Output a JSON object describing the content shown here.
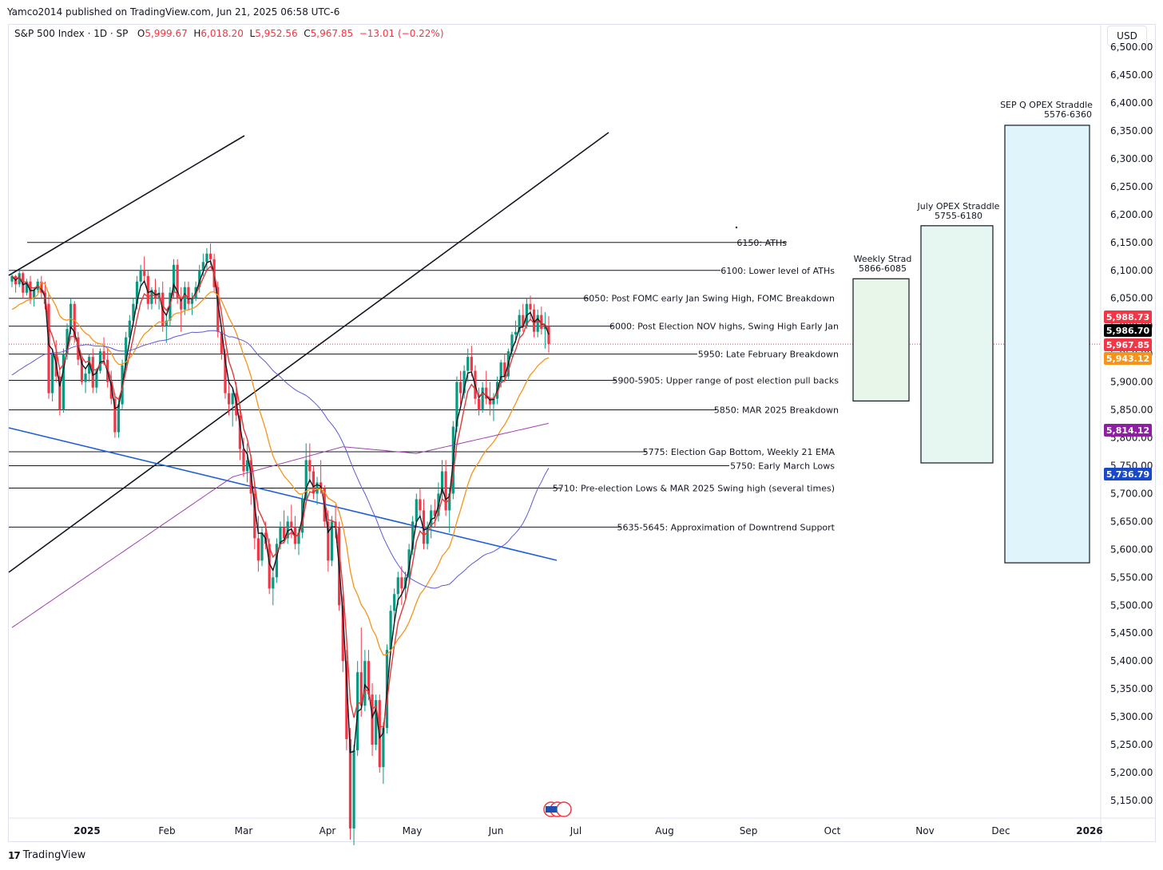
{
  "header": {
    "published": "Yamco2014 published on TradingView.com, Jun 21, 2025 06:58 UTC-6",
    "symbol": "S&P 500 Index · 1D · SP",
    "o_label": "O",
    "o_value": "5,999.67",
    "h_label": "H",
    "h_value": "6,018.20",
    "l_label": "L",
    "l_value": "5,952.56",
    "c_label": "C",
    "c_value": "5,967.85",
    "change": "−13.01 (−0.22%)"
  },
  "currency": "USD",
  "footer": {
    "brand": "TradingView",
    "logo_mark": "17"
  },
  "colors": {
    "up": "#089981",
    "down": "#f23645",
    "ema_black": "#131722",
    "ema_red": "#e03a3a",
    "ema_orange": "#f7931a",
    "ma_blue": "#5b5bd6",
    "ma_purple": "#a040b0",
    "trend_blue": "#1e5fd8",
    "weekly_box": "#e8f5e9",
    "july_box": "#e6f7f2",
    "sep_box": "#e0f5fb"
  },
  "chart_data": {
    "type": "candlestick",
    "y_axis": {
      "min": 5100,
      "max": 6500,
      "scale": "linear",
      "ticks": [
        "5,150.00",
        "5,200.00",
        "5,250.00",
        "5,300.00",
        "5,350.00",
        "5,400.00",
        "5,450.00",
        "5,500.00",
        "5,550.00",
        "5,600.00",
        "5,650.00",
        "5,700.00",
        "5,750.00",
        "5,800.00",
        "5,850.00",
        "5,900.00",
        "5,950.00",
        "6,000.00",
        "6,050.00",
        "6,100.00",
        "6,150.00",
        "6,200.00",
        "6,250.00",
        "6,300.00",
        "6,350.00",
        "6,400.00",
        "6,450.00",
        "6,500.00"
      ]
    },
    "x_axis": {
      "labels": [
        "2025",
        "Feb",
        "Mar",
        "Apr",
        "May",
        "Jun",
        "Jul",
        "Aug",
        "Sep",
        "Oct",
        "Nov",
        "Dec",
        "2026"
      ],
      "bold_labels": [
        "2025",
        "2026"
      ]
    },
    "price_badges": [
      {
        "value": "5,988.73",
        "color": "#f23645"
      },
      {
        "value": "5,986.70",
        "color": "#000000"
      },
      {
        "value": "5,967.85",
        "color": "#f23645"
      },
      {
        "value": "5,943.12",
        "color": "#f7931a"
      },
      {
        "value": "5,814.12",
        "color": "#8e1fa3"
      },
      {
        "value": "5,736.79",
        "color": "#1848cc"
      }
    ],
    "levels": [
      {
        "price": 6150,
        "label": "6150: ATHs"
      },
      {
        "price": 6100,
        "label": "6100: Lower level of ATHs"
      },
      {
        "price": 6050,
        "label": "6050: Post FOMC early Jan Swing High, FOMC Breakdown"
      },
      {
        "price": 6000,
        "label": "6000: Post Election NOV highs, Swing High Early Jan"
      },
      {
        "price": 5950,
        "label": "5950: Late February Breakdown"
      },
      {
        "price": 5903,
        "label": "5900-5905: Upper range of post election pull backs"
      },
      {
        "price": 5850,
        "label": "5850: MAR 2025 Breakdown"
      },
      {
        "price": 5775,
        "label": "5775: Election Gap Bottom, Weekly 21 EMA"
      },
      {
        "price": 5750,
        "label": "5750: Early March Lows"
      },
      {
        "price": 5710,
        "label": "5710: Pre-election Lows & MAR 2025 Swing high (several times)"
      },
      {
        "price": 5640,
        "label": "5635-5645: Approximation of Downtrend Support"
      }
    ],
    "ranges": [
      {
        "title": "Weekly Strad",
        "range_label": "5866-6085",
        "low": 5866,
        "high": 6085
      },
      {
        "title": "July OPEX Straddle",
        "range_label": "5755-6180",
        "low": 5755,
        "high": 6180
      },
      {
        "title": "SEP Q OPEX Straddle",
        "range_label": "5576-6360",
        "low": 5576,
        "high": 6360
      }
    ],
    "series": [
      {
        "ohlc": [
          [
            6080,
            6095,
            6070,
            6090
          ],
          [
            6090,
            6092,
            6060,
            6075
          ],
          [
            6075,
            6100,
            6070,
            6095
          ],
          [
            6095,
            6098,
            6050,
            6060
          ],
          [
            6060,
            6085,
            6055,
            6080
          ],
          [
            6080,
            6090,
            6040,
            6050
          ],
          [
            6050,
            6070,
            6035,
            6065
          ],
          [
            6065,
            6085,
            6060,
            6080
          ],
          [
            6080,
            6090,
            6050,
            6060
          ],
          [
            6060,
            6080,
            6030,
            6040
          ],
          [
            6040,
            6060,
            5870,
            5880
          ],
          [
            5880,
            5960,
            5865,
            5950
          ],
          [
            5950,
            5975,
            5900,
            5910
          ],
          [
            5910,
            5920,
            5840,
            5850
          ],
          [
            5850,
            5960,
            5845,
            5950
          ],
          [
            5950,
            6005,
            5940,
            5995
          ],
          [
            5995,
            6050,
            5985,
            6040
          ],
          [
            6040,
            6045,
            5970,
            5980
          ],
          [
            5980,
            5990,
            5930,
            5940
          ],
          [
            5940,
            5945,
            5895,
            5900
          ],
          [
            5900,
            5925,
            5880,
            5915
          ],
          [
            5915,
            5950,
            5900,
            5945
          ],
          [
            5945,
            5960,
            5880,
            5890
          ],
          [
            5890,
            5925,
            5880,
            5920
          ],
          [
            5920,
            5960,
            5915,
            5955
          ],
          [
            5955,
            5980,
            5930,
            5940
          ],
          [
            5940,
            5960,
            5890,
            5900
          ],
          [
            5900,
            5920,
            5860,
            5870
          ],
          [
            5870,
            5880,
            5800,
            5810
          ],
          [
            5810,
            5870,
            5800,
            5860
          ],
          [
            5860,
            5940,
            5850,
            5930
          ],
          [
            5930,
            5990,
            5920,
            5980
          ],
          [
            5980,
            6020,
            5970,
            6010
          ],
          [
            6010,
            6050,
            6000,
            6040
          ],
          [
            6040,
            6090,
            6030,
            6080
          ],
          [
            6080,
            6110,
            6070,
            6100
          ],
          [
            6100,
            6125,
            6080,
            6090
          ],
          [
            6090,
            6100,
            6030,
            6040
          ],
          [
            6040,
            6070,
            6030,
            6065
          ],
          [
            6065,
            6085,
            6040,
            6050
          ],
          [
            6050,
            6070,
            6030,
            6060
          ],
          [
            6060,
            6080,
            5990,
            6000
          ],
          [
            6000,
            6020,
            5970,
            6010
          ],
          [
            6010,
            6070,
            6000,
            6060
          ],
          [
            6060,
            6120,
            6050,
            6110
          ],
          [
            6110,
            6120,
            6040,
            6050
          ],
          [
            6050,
            6070,
            5990,
            6030
          ],
          [
            6030,
            6080,
            6020,
            6070
          ],
          [
            6070,
            6080,
            6030,
            6040
          ],
          [
            6040,
            6060,
            6020,
            6050
          ],
          [
            6050,
            6080,
            6045,
            6070
          ],
          [
            6070,
            6110,
            6060,
            6100
          ],
          [
            6100,
            6130,
            6090,
            6115
          ],
          [
            6115,
            6140,
            6100,
            6130
          ],
          [
            6130,
            6148,
            6110,
            6120
          ],
          [
            6120,
            6130,
            6060,
            6070
          ],
          [
            6070,
            6080,
            5980,
            5990
          ],
          [
            5990,
            6000,
            5940,
            5950
          ],
          [
            5950,
            5960,
            5870,
            5880
          ],
          [
            5880,
            5900,
            5840,
            5860
          ],
          [
            5860,
            5890,
            5820,
            5880
          ],
          [
            5880,
            5900,
            5830,
            5840
          ],
          [
            5840,
            5860,
            5760,
            5780
          ],
          [
            5780,
            5800,
            5730,
            5740
          ],
          [
            5740,
            5790,
            5720,
            5760
          ],
          [
            5760,
            5770,
            5680,
            5700
          ],
          [
            5700,
            5720,
            5600,
            5620
          ],
          [
            5620,
            5660,
            5560,
            5580
          ],
          [
            5580,
            5640,
            5570,
            5630
          ],
          [
            5630,
            5650,
            5600,
            5610
          ],
          [
            5610,
            5620,
            5520,
            5530
          ],
          [
            5530,
            5560,
            5500,
            5550
          ],
          [
            5550,
            5620,
            5540,
            5610
          ],
          [
            5610,
            5650,
            5600,
            5640
          ],
          [
            5640,
            5670,
            5610,
            5620
          ],
          [
            5620,
            5660,
            5610,
            5650
          ],
          [
            5650,
            5680,
            5620,
            5640
          ],
          [
            5640,
            5660,
            5600,
            5610
          ],
          [
            5610,
            5640,
            5590,
            5630
          ],
          [
            5630,
            5700,
            5620,
            5690
          ],
          [
            5690,
            5790,
            5680,
            5760
          ],
          [
            5760,
            5790,
            5720,
            5740
          ],
          [
            5740,
            5750,
            5690,
            5700
          ],
          [
            5700,
            5730,
            5680,
            5720
          ],
          [
            5720,
            5760,
            5700,
            5710
          ],
          [
            5710,
            5715,
            5640,
            5650
          ],
          [
            5650,
            5670,
            5560,
            5580
          ],
          [
            5580,
            5660,
            5570,
            5650
          ],
          [
            5650,
            5680,
            5620,
            5640
          ],
          [
            5640,
            5650,
            5490,
            5500
          ],
          [
            5500,
            5520,
            5380,
            5400
          ],
          [
            5400,
            5420,
            5240,
            5260
          ],
          [
            5260,
            5280,
            5080,
            5100
          ],
          [
            5100,
            5250,
            5070,
            5240
          ],
          [
            5240,
            5400,
            5230,
            5380
          ],
          [
            5380,
            5460,
            5300,
            5320
          ],
          [
            5320,
            5420,
            5310,
            5400
          ],
          [
            5400,
            5420,
            5330,
            5340
          ],
          [
            5340,
            5360,
            5230,
            5250
          ],
          [
            5250,
            5340,
            5240,
            5330
          ],
          [
            5330,
            5340,
            5200,
            5210
          ],
          [
            5210,
            5290,
            5180,
            5280
          ],
          [
            5280,
            5430,
            5270,
            5420
          ],
          [
            5420,
            5500,
            5410,
            5490
          ],
          [
            5490,
            5530,
            5470,
            5520
          ],
          [
            5520,
            5560,
            5500,
            5550
          ],
          [
            5550,
            5570,
            5500,
            5530
          ],
          [
            5530,
            5560,
            5510,
            5550
          ],
          [
            5550,
            5610,
            5540,
            5600
          ],
          [
            5600,
            5660,
            5590,
            5650
          ],
          [
            5650,
            5700,
            5640,
            5690
          ],
          [
            5690,
            5710,
            5660,
            5670
          ],
          [
            5670,
            5690,
            5600,
            5610
          ],
          [
            5610,
            5650,
            5600,
            5640
          ],
          [
            5640,
            5680,
            5620,
            5670
          ],
          [
            5670,
            5690,
            5640,
            5660
          ],
          [
            5660,
            5720,
            5650,
            5700
          ],
          [
            5700,
            5760,
            5690,
            5740
          ],
          [
            5740,
            5760,
            5660,
            5670
          ],
          [
            5670,
            5710,
            5630,
            5700
          ],
          [
            5700,
            5830,
            5690,
            5820
          ],
          [
            5820,
            5910,
            5810,
            5900
          ],
          [
            5900,
            5920,
            5860,
            5880
          ],
          [
            5880,
            5930,
            5870,
            5920
          ],
          [
            5920,
            5960,
            5900,
            5945
          ],
          [
            5945,
            5965,
            5910,
            5920
          ],
          [
            5920,
            5930,
            5860,
            5870
          ],
          [
            5870,
            5890,
            5840,
            5850
          ],
          [
            5850,
            5900,
            5845,
            5890
          ],
          [
            5890,
            5920,
            5860,
            5870
          ],
          [
            5870,
            5900,
            5840,
            5860
          ],
          [
            5860,
            5880,
            5830,
            5870
          ],
          [
            5870,
            5910,
            5860,
            5900
          ],
          [
            5900,
            5940,
            5890,
            5935
          ],
          [
            5935,
            5950,
            5900,
            5910
          ],
          [
            5910,
            5960,
            5905,
            5955
          ],
          [
            5955,
            5990,
            5945,
            5985
          ],
          [
            5985,
            6010,
            5970,
            5990
          ],
          [
            5990,
            6030,
            5980,
            6020
          ],
          [
            6020,
            6040,
            5990,
            6000
          ],
          [
            6000,
            6050,
            5995,
            6040
          ],
          [
            6040,
            6055,
            6010,
            6030
          ],
          [
            6030,
            6040,
            5980,
            5990
          ],
          [
            5990,
            6030,
            5980,
            6020
          ],
          [
            6020,
            6035,
            5985,
            5995
          ],
          [
            5995,
            6025,
            5960,
            6000
          ],
          [
            6000,
            6018,
            5952,
            5968
          ]
        ]
      }
    ]
  }
}
